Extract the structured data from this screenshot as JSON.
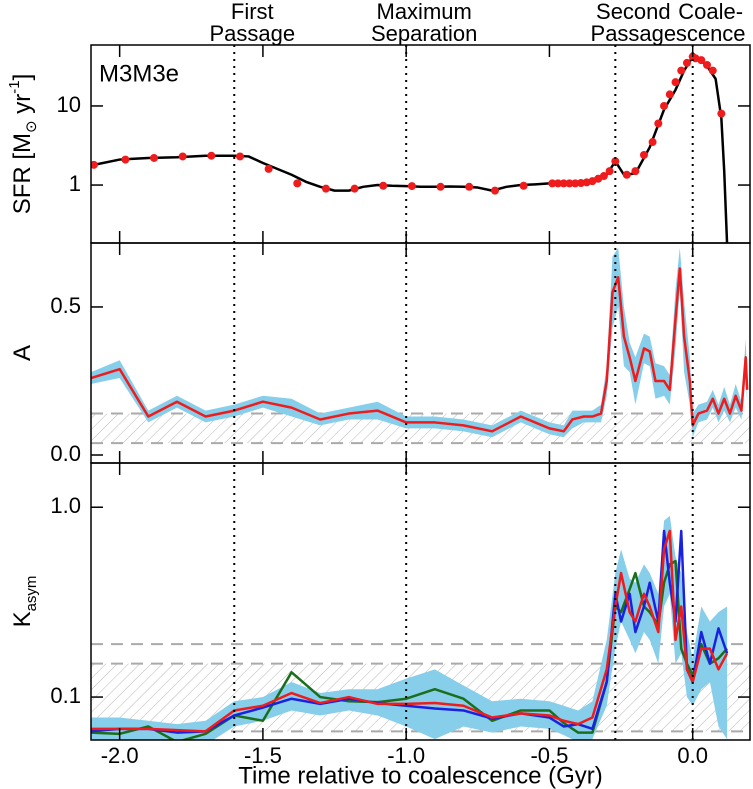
{
  "chart_data": [
    {
      "type": "line",
      "title": "M3M3e",
      "log_y": true,
      "ylabel": [
        {
          "text": "SFR [M"
        },
        {
          "text": "⊙",
          "sub": true
        },
        {
          "text": " yr"
        },
        {
          "text": "-1",
          "sup": true
        },
        {
          "text": "]"
        }
      ],
      "xlim": [
        -2.1,
        0.2
      ],
      "ylim": [
        0.185,
        59
      ],
      "yticks": [
        1,
        10
      ],
      "annotations": [
        {
          "x": -1.6,
          "lines": [
            "First",
            "Passage"
          ]
        },
        {
          "x": -1.0,
          "lines": [
            "Maximum",
            "Separation"
          ]
        },
        {
          "x": -0.27,
          "lines": [
            "Second",
            "Passage"
          ]
        },
        {
          "x": 0.0,
          "lines": [
            "Coale-",
            "scence"
          ]
        }
      ],
      "series": [
        {
          "color": "#000000",
          "style": "line",
          "x": [
            -2.09,
            -2.0,
            -1.9,
            -1.8,
            -1.7,
            -1.6,
            -1.55,
            -1.5,
            -1.45,
            -1.4,
            -1.35,
            -1.3,
            -1.25,
            -1.2,
            -1.15,
            -1.1,
            -1.05,
            -1.0,
            -0.95,
            -0.9,
            -0.85,
            -0.8,
            -0.75,
            -0.7,
            -0.65,
            -0.6,
            -0.55,
            -0.5,
            -0.45,
            -0.4,
            -0.35,
            -0.3,
            -0.27,
            -0.24,
            -0.2,
            -0.15,
            -0.1,
            -0.06,
            -0.03,
            0.0,
            0.02,
            0.05,
            0.08,
            0.1,
            0.11,
            0.12
          ],
          "values": [
            1.8,
            2.1,
            2.2,
            2.25,
            2.35,
            2.35,
            2.3,
            1.9,
            1.6,
            1.35,
            1.1,
            0.95,
            0.85,
            0.85,
            0.95,
            1.0,
            0.98,
            0.97,
            0.95,
            0.95,
            0.96,
            0.95,
            0.93,
            0.85,
            0.95,
            1.0,
            1.02,
            1.05,
            1.05,
            1.07,
            1.15,
            1.35,
            2.0,
            1.35,
            1.4,
            3.0,
            9,
            16,
            28,
            42,
            40,
            32,
            22,
            7,
            1.5,
            0.18
          ]
        },
        {
          "color": "#ee1c1c",
          "style": "markers",
          "x": [
            -2.09,
            -1.98,
            -1.88,
            -1.78,
            -1.68,
            -1.58,
            -1.48,
            -1.38,
            -1.28,
            -1.18,
            -1.08,
            -0.98,
            -0.88,
            -0.78,
            -0.69,
            -0.59,
            -0.49,
            -0.47,
            -0.45,
            -0.43,
            -0.41,
            -0.39,
            -0.37,
            -0.35,
            -0.33,
            -0.31,
            -0.29,
            -0.27,
            -0.23,
            -0.2,
            -0.17,
            -0.14,
            -0.12,
            -0.1,
            -0.08,
            -0.06,
            -0.04,
            -0.02,
            0.0,
            0.01,
            0.03,
            0.05,
            0.07,
            0.1
          ],
          "values": [
            1.8,
            2.1,
            2.2,
            2.3,
            2.35,
            2.3,
            1.6,
            1.05,
            0.9,
            0.9,
            0.98,
            0.97,
            0.95,
            0.95,
            0.85,
            0.98,
            1.05,
            1.05,
            1.05,
            1.05,
            1.05,
            1.06,
            1.08,
            1.12,
            1.2,
            1.3,
            1.5,
            2.0,
            1.35,
            1.5,
            2.4,
            3.5,
            6,
            10,
            14,
            20,
            28,
            35,
            42,
            40,
            38,
            33,
            28,
            8
          ]
        }
      ]
    },
    {
      "type": "line",
      "log_y": false,
      "ylabel": [
        {
          "text": "A"
        }
      ],
      "xlim": [
        -2.1,
        0.2
      ],
      "ylim": [
        -0.027,
        0.716
      ],
      "yticks": [
        {
          "value": 0,
          "label": "0.0"
        },
        0.5
      ],
      "hatch_band": [
        0.04,
        0.14
      ],
      "x": [
        -2.1,
        -2.0,
        -1.9,
        -1.8,
        -1.7,
        -1.6,
        -1.5,
        -1.4,
        -1.3,
        -1.2,
        -1.1,
        -1.0,
        -0.9,
        -0.8,
        -0.7,
        -0.6,
        -0.55,
        -0.5,
        -0.45,
        -0.42,
        -0.38,
        -0.35,
        -0.32,
        -0.3,
        -0.28,
        -0.26,
        -0.24,
        -0.22,
        -0.2,
        -0.17,
        -0.15,
        -0.13,
        -0.1,
        -0.08,
        -0.06,
        -0.045,
        -0.03,
        -0.01,
        0.0,
        0.02,
        0.05,
        0.07,
        0.09,
        0.11,
        0.13,
        0.15,
        0.17,
        0.185,
        0.19
      ],
      "series": [
        {
          "color": "#87ceeb",
          "style": "band",
          "lower": [
            0.24,
            0.26,
            0.11,
            0.16,
            0.11,
            0.13,
            0.16,
            0.13,
            0.1,
            0.12,
            0.12,
            0.09,
            0.09,
            0.08,
            0.06,
            0.11,
            0.09,
            0.07,
            0.06,
            0.09,
            0.11,
            0.11,
            0.11,
            0.2,
            0.43,
            0.5,
            0.3,
            0.28,
            0.17,
            0.31,
            0.3,
            0.19,
            0.2,
            0.17,
            0.36,
            0.56,
            0.28,
            0.17,
            0.06,
            0.11,
            0.12,
            0.16,
            0.11,
            0.15,
            0.11,
            0.16,
            0.12,
            0.27,
            0.18
          ],
          "upper": [
            0.28,
            0.32,
            0.15,
            0.2,
            0.15,
            0.17,
            0.2,
            0.19,
            0.14,
            0.16,
            0.18,
            0.13,
            0.13,
            0.12,
            0.1,
            0.15,
            0.13,
            0.11,
            0.1,
            0.15,
            0.15,
            0.15,
            0.17,
            0.3,
            0.67,
            0.7,
            0.5,
            0.38,
            0.33,
            0.41,
            0.4,
            0.31,
            0.3,
            0.27,
            0.56,
            0.7,
            0.52,
            0.33,
            0.14,
            0.17,
            0.18,
            0.22,
            0.17,
            0.23,
            0.17,
            0.24,
            0.18,
            0.39,
            0.26
          ]
        },
        {
          "color": "#ee1c1c",
          "style": "line",
          "values": [
            0.26,
            0.29,
            0.13,
            0.18,
            0.13,
            0.15,
            0.18,
            0.16,
            0.12,
            0.14,
            0.15,
            0.11,
            0.11,
            0.1,
            0.08,
            0.13,
            0.11,
            0.09,
            0.08,
            0.12,
            0.13,
            0.13,
            0.14,
            0.25,
            0.55,
            0.6,
            0.4,
            0.33,
            0.25,
            0.36,
            0.35,
            0.25,
            0.25,
            0.22,
            0.46,
            0.63,
            0.4,
            0.25,
            0.1,
            0.14,
            0.15,
            0.19,
            0.14,
            0.19,
            0.14,
            0.2,
            0.15,
            0.33,
            0.22
          ]
        }
      ]
    },
    {
      "type": "line",
      "log_y": true,
      "ylabel": [
        {
          "text": "K"
        },
        {
          "text": "asym",
          "sub": true
        }
      ],
      "xlabel": "Time relative to coalescence (Gyr)",
      "xlim": [
        -2.1,
        0.2
      ],
      "ylim": [
        0.0594,
        1.71
      ],
      "yticks": [
        0.1,
        {
          "value": 1,
          "label": "1.0"
        }
      ],
      "xticks": [
        {
          "value": -2,
          "label": "-2.0"
        },
        -1.5,
        {
          "value": -1,
          "label": "-1.0"
        },
        -0.5,
        {
          "value": 0,
          "label": "0.0"
        }
      ],
      "hatch_band": [
        0.066,
        0.15
      ],
      "dashed_lines": [
        0.19
      ],
      "x": [
        -2.1,
        -2.0,
        -1.9,
        -1.8,
        -1.7,
        -1.6,
        -1.5,
        -1.4,
        -1.3,
        -1.2,
        -1.1,
        -1.0,
        -0.9,
        -0.8,
        -0.7,
        -0.6,
        -0.5,
        -0.45,
        -0.4,
        -0.35,
        -0.3,
        -0.27,
        -0.25,
        -0.22,
        -0.2,
        -0.17,
        -0.15,
        -0.12,
        -0.1,
        -0.08,
        -0.06,
        -0.04,
        -0.02,
        0.0,
        0.03,
        0.06,
        0.09,
        0.12
      ],
      "series": [
        {
          "color": "#87ceeb",
          "style": "band",
          "lower": [
            0.06,
            0.058,
            0.058,
            0.055,
            0.056,
            0.07,
            0.075,
            0.085,
            0.08,
            0.085,
            0.08,
            0.07,
            0.06,
            0.07,
            0.065,
            0.07,
            0.068,
            0.063,
            0.058,
            0.06,
            0.09,
            0.18,
            0.25,
            0.2,
            0.17,
            0.22,
            0.2,
            0.15,
            0.3,
            0.35,
            0.15,
            0.17,
            0.1,
            0.09,
            0.11,
            0.12,
            0.07,
            0.06
          ],
          "upper": [
            0.078,
            0.078,
            0.075,
            0.072,
            0.075,
            0.095,
            0.1,
            0.12,
            0.105,
            0.11,
            0.11,
            0.125,
            0.14,
            0.115,
            0.095,
            0.098,
            0.095,
            0.09,
            0.085,
            0.095,
            0.2,
            0.45,
            0.6,
            0.42,
            0.4,
            0.5,
            0.45,
            0.35,
            0.85,
            0.9,
            0.55,
            0.45,
            0.22,
            0.16,
            0.3,
            0.25,
            0.28,
            0.3
          ]
        },
        {
          "color": "#1b6e1b",
          "style": "line",
          "values": [
            0.065,
            0.064,
            0.07,
            0.058,
            0.064,
            0.08,
            0.075,
            0.135,
            0.1,
            0.095,
            0.094,
            0.098,
            0.11,
            0.098,
            0.075,
            0.085,
            0.085,
            0.073,
            0.065,
            0.065,
            0.12,
            0.3,
            0.28,
            0.37,
            0.45,
            0.3,
            0.28,
            0.24,
            0.4,
            0.5,
            0.52,
            0.18,
            0.15,
            0.13,
            0.19,
            0.15,
            0.16,
            0.18
          ]
        },
        {
          "color": "#1a22e0",
          "style": "line",
          "values": [
            0.066,
            0.068,
            0.068,
            0.065,
            0.066,
            0.08,
            0.088,
            0.098,
            0.092,
            0.098,
            0.093,
            0.09,
            0.087,
            0.085,
            0.077,
            0.082,
            0.078,
            0.07,
            0.072,
            0.068,
            0.12,
            0.35,
            0.25,
            0.35,
            0.22,
            0.3,
            0.4,
            0.25,
            0.75,
            0.4,
            0.25,
            0.75,
            0.14,
            0.12,
            0.22,
            0.15,
            0.23,
            0.17
          ]
        },
        {
          "color": "#ee1c1c",
          "style": "line",
          "values": [
            0.068,
            0.068,
            0.068,
            0.067,
            0.066,
            0.085,
            0.09,
            0.105,
            0.093,
            0.1,
            0.092,
            0.092,
            0.093,
            0.09,
            0.078,
            0.082,
            0.08,
            0.075,
            0.072,
            0.078,
            0.14,
            0.3,
            0.45,
            0.28,
            0.25,
            0.35,
            0.3,
            0.22,
            0.6,
            0.75,
            0.2,
            0.3,
            0.14,
            0.12,
            0.18,
            0.18,
            0.14,
            0.17
          ]
        }
      ]
    }
  ]
}
